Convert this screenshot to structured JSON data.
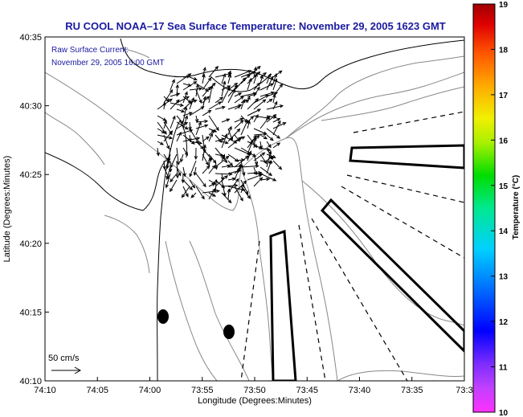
{
  "title": "RU COOL  NOAA–17  Sea Surface Temperature:  November 29, 2005 1623 GMT",
  "current_label": "Raw Surface Current:",
  "current_time": "November 29, 2005 16:00 GMT",
  "scale_label": "50 cm/s",
  "x_axis": {
    "label": "Longitude (Degrees:Minutes)",
    "ticks": [
      "74:10",
      "74:05",
      "74:00",
      "73:55",
      "73:50",
      "73:45",
      "73:40",
      "73:35",
      "73:3"
    ]
  },
  "y_axis": {
    "label": "Latitude (Degrees:Minutes)",
    "ticks": [
      "40:35",
      "40:30",
      "40:25",
      "40:20",
      "40:15",
      "40:10"
    ]
  },
  "colorbar": {
    "label": "Temperature (°C)",
    "ticks": [
      "19",
      "18",
      "17",
      "16",
      "15",
      "14",
      "13",
      "12",
      "11",
      "10"
    ],
    "min": 10,
    "max": 19
  },
  "colors": {
    "title": "#1a1aa0",
    "coastline": "#000000",
    "bathymetry": "#888888",
    "frame": "#000000"
  },
  "icons": [
    "current-vector-arrow",
    "station-marker",
    "scale-arrow"
  ]
}
